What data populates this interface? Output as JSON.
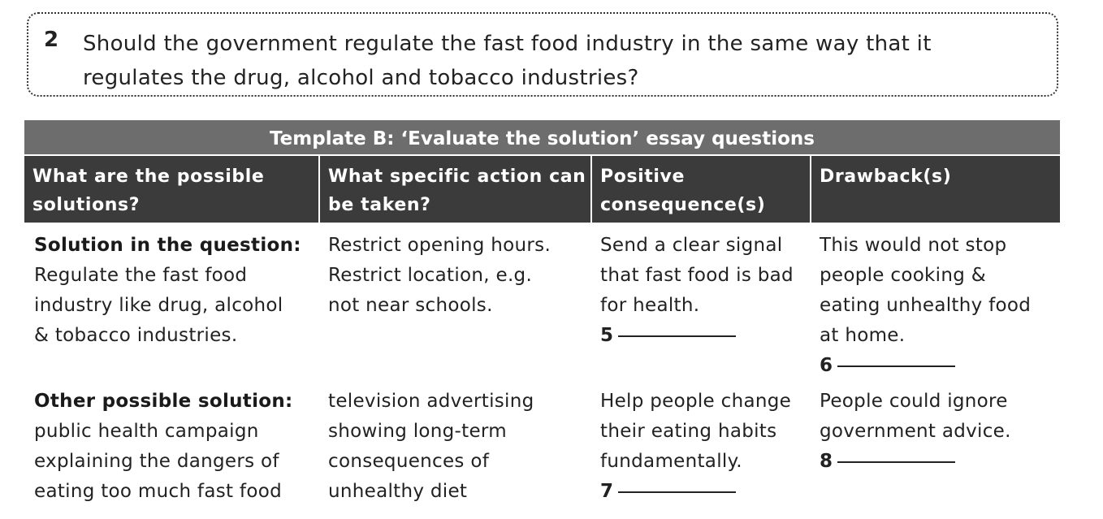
{
  "question": {
    "number": "2",
    "lines": [
      "Should the government regulate the fast food industry in the same way that it",
      "regulates the drug, alcohol and tobacco industries?"
    ]
  },
  "table": {
    "title": "Template B: ‘Evaluate the solution’ essay questions",
    "headers": [
      [
        "What are the possible",
        "solutions?"
      ],
      [
        "What specific action can",
        "be taken?"
      ],
      [
        "Positive",
        "consequence(s)"
      ],
      [
        "Drawback(s)"
      ]
    ],
    "rows": [
      {
        "solution_label": "Solution in the question:",
        "solution_lines": [
          "Regulate the fast food",
          "industry like drug, alcohol",
          "& tobacco industries."
        ],
        "action_lines": [
          "Restrict opening hours.",
          "Restrict location, e.g.",
          "not near schools."
        ],
        "positive_lines": [
          "Send a clear signal",
          "that fast food is bad",
          "for health."
        ],
        "positive_blank": "5",
        "drawback_lines": [
          "This would not stop",
          "people cooking &",
          "eating unhealthy food",
          "at home."
        ],
        "drawback_blank": "6"
      },
      {
        "solution_label": "Other possible solution:",
        "solution_lines": [
          "public health campaign",
          "explaining the dangers of",
          "eating too much fast food"
        ],
        "action_lines": [
          "television advertising",
          "showing long-term",
          "consequences of",
          "unhealthy diet"
        ],
        "positive_lines": [
          "Help people change",
          "their eating habits",
          "fundamentally."
        ],
        "positive_blank": "7",
        "drawback_lines": [
          "People could ignore",
          "government advice."
        ],
        "drawback_blank": "8"
      }
    ]
  }
}
